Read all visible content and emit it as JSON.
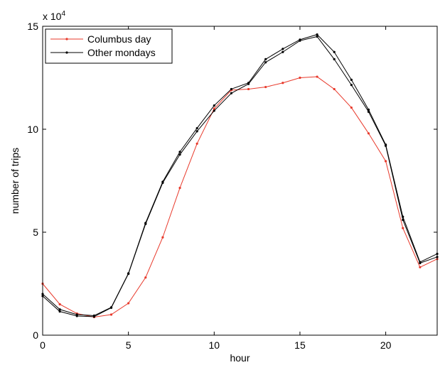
{
  "chart_data": {
    "type": "line",
    "title": "",
    "xlabel": "hour",
    "ylabel": "number of trips",
    "y_multiplier_label": "x 10",
    "y_multiplier_exponent": "4",
    "xlim": [
      0,
      23
    ],
    "ylim": [
      0,
      150000
    ],
    "xticks": [
      0,
      5,
      10,
      15,
      20
    ],
    "yticks": [
      0,
      50000,
      100000,
      150000
    ],
    "xtick_labels": [
      "0",
      "5",
      "10",
      "15",
      "20"
    ],
    "ytick_labels": [
      "0",
      "5",
      "10",
      "15"
    ],
    "grid": false,
    "legend_position": "top-left",
    "x": [
      0,
      1,
      2,
      3,
      4,
      5,
      6,
      7,
      8,
      9,
      10,
      11,
      12,
      13,
      14,
      15,
      16,
      17,
      18,
      19,
      20,
      21,
      22,
      23
    ],
    "series": [
      {
        "name": "Columbus day",
        "color": "#e8392b",
        "values": [
          25000,
          15000,
          10500,
          8800,
          10000,
          15500,
          28000,
          47500,
          71500,
          93000,
          110000,
          119000,
          119500,
          120500,
          122500,
          125000,
          125500,
          119500,
          110500,
          98000,
          84500,
          52000,
          33000,
          37000
        ]
      },
      {
        "name": "Other mondays",
        "color": "#000000",
        "values": [
          20000,
          12500,
          10000,
          9500,
          13500,
          30000,
          54500,
          74500,
          89000,
          100500,
          111500,
          119500,
          122500,
          134000,
          139000,
          143500,
          146000,
          137500,
          124000,
          109500,
          92500,
          57500,
          35500,
          39500
        ]
      },
      {
        "name": "",
        "color": "#000000",
        "values": [
          19000,
          11500,
          9300,
          9000,
          13300,
          29800,
          54000,
          74000,
          87700,
          99000,
          109000,
          117500,
          122000,
          132500,
          137500,
          143000,
          145000,
          134000,
          121500,
          108500,
          92000,
          56000,
          35000,
          38000
        ]
      }
    ]
  }
}
